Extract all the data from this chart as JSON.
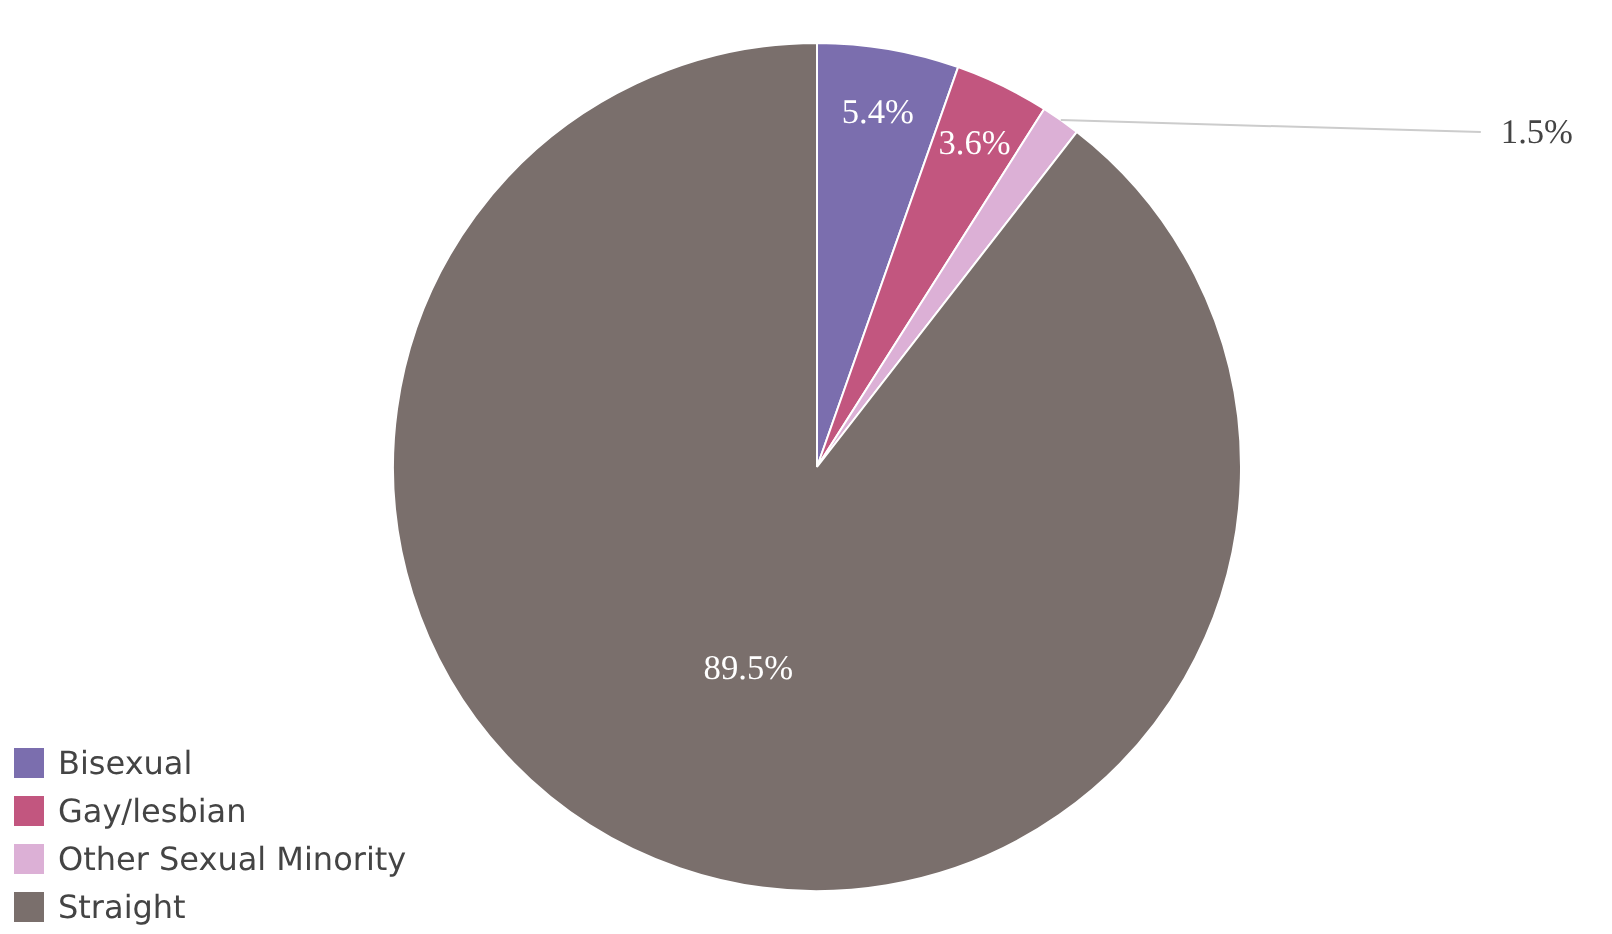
{
  "chart_data": {
    "type": "pie",
    "categories": [
      "Bisexual",
      "Gay/lesbian",
      "Other Sexual Minority",
      "Straight"
    ],
    "values": [
      5.4,
      3.6,
      1.5,
      89.5
    ],
    "colors": [
      "#7b6eae",
      "#c2567f",
      "#dcb0d6",
      "#7a6f6c"
    ],
    "value_labels": [
      "5.4%",
      "3.6%",
      "1.5%",
      "89.5%"
    ],
    "legend": "bottom left"
  }
}
